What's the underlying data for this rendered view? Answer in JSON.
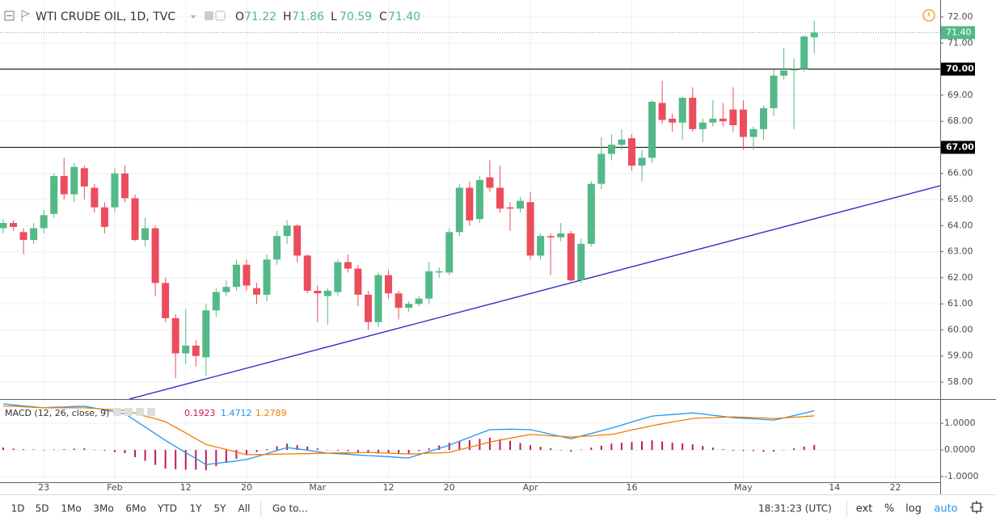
{
  "chart_data": [
    {
      "type": "candlestick",
      "title": "WTI CRUDE OIL, 1D, TVC",
      "ohlc_legend": [
        {
          "label": "O",
          "value": "71.22"
        },
        {
          "label": "H",
          "value": "71.86"
        },
        {
          "label": "L",
          "value": "70.59"
        },
        {
          "label": "C",
          "value": "71.40"
        }
      ],
      "categories": [
        null,
        null,
        null,
        null,
        "23",
        null,
        null,
        null,
        null,
        null,
        null,
        "Feb",
        null,
        null,
        null,
        null,
        null,
        null,
        "12",
        null,
        null,
        null,
        null,
        null,
        "20",
        null,
        null,
        null,
        null,
        null,
        null,
        "Mar",
        null,
        null,
        null,
        null,
        null,
        null,
        "12",
        null,
        null,
        null,
        null,
        null,
        "20",
        null,
        null,
        null,
        null,
        null,
        null,
        null,
        "Apr",
        null,
        null,
        null,
        null,
        null,
        null,
        null,
        null,
        null,
        "16",
        null,
        null,
        null,
        null,
        null,
        null,
        null,
        null,
        null,
        null,
        "May",
        null,
        null,
        null,
        null,
        null,
        null,
        null,
        null,
        "14",
        null,
        null,
        null,
        null,
        null,
        "22"
      ],
      "open": [
        63.9,
        64.1,
        63.75,
        63.45,
        63.9,
        64.45,
        65.9,
        65.2,
        66.2,
        65.45,
        64.7,
        64.7,
        66.0,
        65.05,
        63.45,
        63.9,
        61.8,
        60.45,
        59.1,
        59.4,
        58.95,
        60.75,
        61.45,
        61.65,
        62.5,
        61.6,
        61.35,
        62.7,
        63.6,
        64.0,
        62.85,
        61.5,
        61.3,
        61.45,
        62.6,
        62.35,
        61.35,
        60.3,
        62.1,
        61.4,
        60.85,
        61.0,
        61.2,
        62.2,
        62.2,
        63.75,
        65.45,
        64.25,
        65.85,
        65.45,
        64.7,
        64.65,
        64.9,
        62.85,
        63.6,
        63.55,
        63.7,
        61.9,
        63.3,
        65.6,
        66.75,
        67.1,
        67.35,
        66.3,
        66.6,
        68.7,
        68.1,
        67.95,
        68.9,
        67.7,
        67.95,
        68.1,
        68.45,
        68.45,
        67.4,
        67.7,
        68.5,
        69.75,
        69.95,
        70.0,
        71.22,
        null,
        null,
        null,
        null,
        null,
        null,
        null,
        null
      ],
      "high": [
        64.25,
        64.2,
        63.9,
        64.1,
        64.6,
        66.0,
        66.6,
        66.4,
        66.3,
        65.6,
        64.9,
        66.2,
        66.3,
        65.2,
        64.3,
        64.0,
        62.0,
        60.6,
        60.8,
        59.6,
        61.0,
        61.6,
        61.9,
        62.7,
        62.7,
        61.8,
        62.9,
        63.8,
        64.2,
        64.05,
        62.9,
        61.7,
        61.6,
        62.7,
        62.9,
        62.5,
        61.5,
        62.2,
        62.3,
        61.5,
        61.1,
        61.3,
        62.6,
        62.4,
        63.9,
        65.6,
        65.7,
        65.9,
        66.5,
        66.3,
        64.9,
        65.1,
        65.3,
        63.7,
        63.7,
        64.1,
        63.8,
        63.5,
        65.7,
        67.4,
        67.5,
        67.7,
        67.5,
        66.9,
        68.8,
        69.55,
        68.3,
        68.95,
        69.3,
        68.1,
        68.8,
        68.7,
        69.3,
        68.8,
        67.8,
        68.6,
        70.0,
        70.8,
        70.4,
        71.3,
        71.86,
        null,
        null,
        null,
        null,
        null,
        null,
        null,
        null
      ],
      "low": [
        63.7,
        63.8,
        62.9,
        63.3,
        63.7,
        64.3,
        65.0,
        64.9,
        65.0,
        64.5,
        63.7,
        64.5,
        64.9,
        63.4,
        63.2,
        61.3,
        60.3,
        58.15,
        58.7,
        58.6,
        58.25,
        60.5,
        61.3,
        61.5,
        61.5,
        61.0,
        61.1,
        62.5,
        63.3,
        62.6,
        61.4,
        60.3,
        60.2,
        61.3,
        62.2,
        60.9,
        60.0,
        60.1,
        61.2,
        60.4,
        60.7,
        60.9,
        61.0,
        62.0,
        62.1,
        63.6,
        64.0,
        64.1,
        65.3,
        64.5,
        63.8,
        64.5,
        62.7,
        62.7,
        62.1,
        63.4,
        61.85,
        61.8,
        63.2,
        65.4,
        66.5,
        66.9,
        66.1,
        65.7,
        66.4,
        67.9,
        67.6,
        67.3,
        67.6,
        67.2,
        67.8,
        67.8,
        67.6,
        66.9,
        66.9,
        67.3,
        68.2,
        69.6,
        67.7,
        69.9,
        70.59,
        null,
        null,
        null,
        null,
        null,
        null,
        null,
        null
      ],
      "close": [
        64.1,
        63.95,
        63.45,
        63.9,
        64.4,
        65.9,
        65.2,
        66.25,
        65.5,
        64.7,
        63.95,
        66.0,
        65.05,
        63.45,
        63.9,
        61.8,
        60.45,
        59.1,
        59.4,
        59.0,
        60.75,
        61.45,
        61.65,
        62.5,
        61.7,
        61.35,
        62.7,
        63.6,
        64.0,
        62.85,
        61.5,
        61.4,
        61.5,
        62.6,
        62.35,
        61.35,
        60.3,
        62.1,
        61.4,
        60.85,
        61.0,
        61.2,
        62.25,
        62.25,
        63.75,
        65.45,
        64.2,
        65.75,
        65.45,
        64.65,
        64.65,
        64.95,
        62.85,
        63.6,
        63.55,
        63.7,
        61.9,
        63.3,
        65.6,
        66.75,
        67.1,
        67.3,
        66.3,
        66.6,
        68.75,
        68.05,
        67.95,
        68.9,
        67.7,
        67.95,
        68.1,
        68.0,
        67.85,
        67.4,
        67.7,
        68.5,
        69.75,
        69.95,
        70.0,
        71.25,
        71.4,
        null,
        null,
        null,
        null,
        null,
        null,
        null,
        null
      ],
      "up_color": "#53b987",
      "down_color": "#eb4d5c",
      "ylim": [
        57.35,
        72.65
      ],
      "yticks": [
        {
          "value": 58,
          "label": "58.00"
        },
        {
          "value": 59,
          "label": "59.00"
        },
        {
          "value": 60,
          "label": "60.00"
        },
        {
          "value": 61,
          "label": "61.00"
        },
        {
          "value": 62,
          "label": "62.00"
        },
        {
          "value": 63,
          "label": "63.00"
        },
        {
          "value": 64,
          "label": "64.00"
        },
        {
          "value": 65,
          "label": "65.00"
        },
        {
          "value": 66,
          "label": "66.00"
        },
        {
          "value": 67,
          "label": "67.00"
        },
        {
          "value": 68,
          "label": "68.00"
        },
        {
          "value": 69,
          "label": "69.00"
        },
        {
          "value": 70,
          "label": "70.00"
        },
        {
          "value": 71,
          "label": "71.00"
        },
        {
          "value": 72,
          "label": "72.00"
        }
      ],
      "grid": true,
      "horizontal_lines": [
        {
          "value": 70,
          "label": "70.00"
        },
        {
          "value": 67,
          "label": "67.00"
        }
      ],
      "line_color": "#000000",
      "last_price": {
        "value": 71.4,
        "label": "71.40",
        "color": "#53b987"
      },
      "trend_line": {
        "values": [
          57.35,
          65.53
        ],
        "color": "#2323c8"
      }
    },
    {
      "type": "macd",
      "title": "MACD (12, 26, close, 9)",
      "legend_values": [
        "0.1923",
        "1.4712",
        "1.2789"
      ],
      "series": [
        {
          "kind": "histogram",
          "color": "#c2185b",
          "values": [
            0.09,
            0.05,
            0.03,
            0.02,
            0,
            0.02,
            0.03,
            0.05,
            0.06,
            0.01,
            -0.03,
            -0.08,
            -0.12,
            -0.27,
            -0.41,
            -0.56,
            -0.7,
            -0.72,
            -0.74,
            -0.74,
            -0.76,
            -0.61,
            -0.48,
            -0.33,
            -0.18,
            -0.08,
            0.03,
            0.14,
            0.24,
            0.18,
            0.13,
            0.06,
            0,
            -0.03,
            -0.05,
            -0.09,
            -0.12,
            -0.12,
            -0.13,
            -0.14,
            -0.15,
            -0.04,
            0.06,
            0.17,
            0.27,
            0.32,
            0.37,
            0.42,
            0.46,
            0.4,
            0.34,
            0.26,
            0.18,
            0.12,
            0.06,
            0,
            -0.06,
            0.01,
            0.09,
            0.16,
            0.24,
            0.27,
            0.3,
            0.33,
            0.36,
            0.32,
            0.28,
            0.25,
            0.21,
            0.15,
            0.09,
            0.03,
            -0.03,
            -0.04,
            -0.04,
            -0.06,
            -0.06,
            0,
            0.06,
            0.13,
            0.1923
          ]
        },
        {
          "kind": "line",
          "color": "#2196f3",
          "values": [
            1.73,
            1.69,
            1.65,
            1.62,
            1.58,
            1.6,
            1.61,
            1.63,
            1.64,
            1.57,
            1.5,
            1.43,
            1.36,
            1.11,
            0.86,
            0.61,
            0.36,
            0.13,
            -0.1,
            -0.32,
            -0.55,
            -0.5,
            -0.46,
            -0.41,
            -0.36,
            -0.25,
            -0.14,
            -0.02,
            0.09,
            0.04,
            -0.01,
            -0.07,
            -0.12,
            -0.14,
            -0.16,
            -0.19,
            -0.21,
            -0.23,
            -0.25,
            -0.28,
            -0.3,
            -0.18,
            -0.06,
            0.06,
            0.18,
            0.33,
            0.47,
            0.62,
            0.76,
            0.77,
            0.78,
            0.77,
            0.76,
            0.68,
            0.59,
            0.51,
            0.42,
            0.52,
            0.62,
            0.72,
            0.82,
            0.93,
            1.05,
            1.16,
            1.27,
            1.3,
            1.33,
            1.36,
            1.39,
            1.35,
            1.3,
            1.26,
            1.21,
            1.19,
            1.17,
            1.14,
            1.12,
            1.2,
            1.29,
            1.38,
            1.4712
          ]
        },
        {
          "kind": "line",
          "color": "#f57c00",
          "values": [
            1.64,
            1.64,
            1.62,
            1.6,
            1.58,
            1.58,
            1.58,
            1.58,
            1.58,
            1.56,
            1.53,
            1.51,
            1.48,
            1.38,
            1.27,
            1.17,
            1.06,
            0.85,
            0.64,
            0.42,
            0.21,
            0.11,
            0.02,
            -0.08,
            -0.18,
            -0.17,
            -0.17,
            -0.16,
            -0.15,
            -0.14,
            -0.14,
            -0.13,
            -0.12,
            -0.11,
            -0.11,
            -0.1,
            -0.09,
            -0.11,
            -0.12,
            -0.14,
            -0.15,
            -0.14,
            -0.12,
            -0.11,
            -0.09,
            0.01,
            0.1,
            0.2,
            0.3,
            0.37,
            0.44,
            0.51,
            0.58,
            0.56,
            0.53,
            0.51,
            0.48,
            0.51,
            0.53,
            0.56,
            0.58,
            0.66,
            0.75,
            0.83,
            0.91,
            0.98,
            1.05,
            1.11,
            1.18,
            1.2,
            1.21,
            1.23,
            1.24,
            1.23,
            1.21,
            1.2,
            1.18,
            1.2,
            1.23,
            1.25,
            1.2789
          ]
        }
      ],
      "ylim": [
        -1.21,
        1.88
      ],
      "yticks": [
        {
          "value": 1,
          "label": "1.0000"
        },
        {
          "value": 0,
          "label": "0.0000"
        },
        {
          "value": -1,
          "label": "-1.0000"
        }
      ],
      "grid": true
    }
  ],
  "toolbar": {
    "ranges": [
      "1D",
      "5D",
      "1Mo",
      "3Mo",
      "6Mo",
      "YTD",
      "1Y",
      "5Y",
      "All"
    ],
    "goto": "Go to...",
    "clock": "18:31:23 (UTC)",
    "options": [
      "ext",
      "%",
      "log",
      "auto"
    ]
  }
}
